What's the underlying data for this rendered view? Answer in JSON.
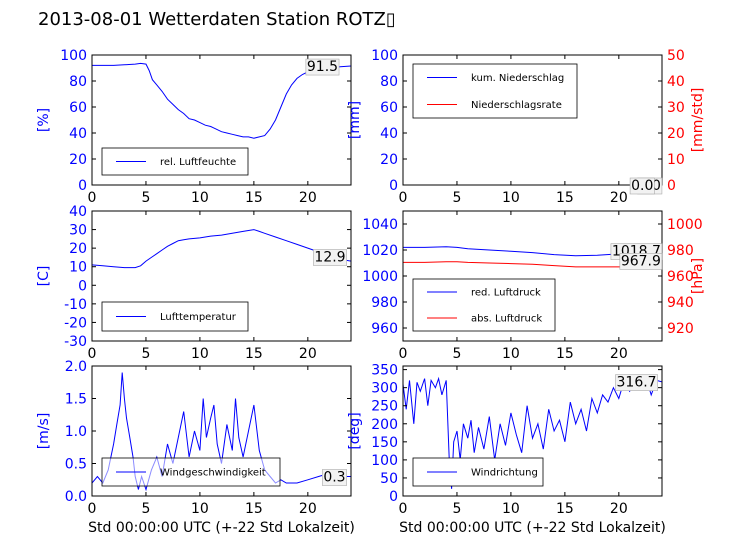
{
  "title": "2013-08-01 Wetterdaten Station ROTZ▯",
  "colors": {
    "blue": "#0000ff",
    "red": "#ff0000",
    "axis": "#000000"
  },
  "chart_data": [
    {
      "type": "line",
      "id": "humidity",
      "ylabel": "[%]",
      "ylabel_color": "#0000ff",
      "xlim": [
        0,
        24
      ],
      "ylim": [
        0,
        100
      ],
      "xticks": [
        0,
        5,
        10,
        15,
        20
      ],
      "yticks": [
        0,
        20,
        40,
        60,
        80,
        100
      ],
      "legend_placement": "lower-left",
      "annotations": [
        {
          "text": "91.5",
          "x": 22.8,
          "y": 91.5
        }
      ],
      "series": [
        {
          "name": "rel. Luftfeuchte",
          "color": "#0000ff",
          "x": [
            0,
            1,
            2,
            3,
            4,
            4.5,
            5,
            5.3,
            5.6,
            6,
            6.5,
            7,
            7.5,
            8,
            8.5,
            9,
            9.5,
            10,
            10.5,
            11,
            11.5,
            12,
            12.5,
            13,
            13.5,
            14,
            14.5,
            15,
            15.5,
            16,
            16.5,
            17,
            17.5,
            18,
            18.5,
            19,
            19.5,
            20,
            21,
            22,
            23,
            24
          ],
          "y": [
            92,
            92,
            92,
            92.5,
            93,
            93.5,
            93,
            88,
            81,
            77,
            72,
            66,
            62,
            58,
            55,
            51,
            50,
            48,
            46,
            45,
            43,
            41,
            40,
            39,
            38,
            37,
            37,
            36,
            37,
            38,
            43,
            50,
            60,
            70,
            77,
            82,
            85,
            87,
            89,
            90,
            91,
            91.5
          ]
        }
      ]
    },
    {
      "type": "line",
      "id": "precipitation",
      "ylabel": "[mm]",
      "ylabel_color": "#0000ff",
      "ylabel_right": "[mm/std]",
      "ylabel_right_color": "#ff0000",
      "xlim": [
        0,
        24
      ],
      "ylim": [
        0,
        100
      ],
      "ylim_right": [
        0,
        50
      ],
      "xticks": [
        0,
        5,
        10,
        15,
        20
      ],
      "yticks": [
        0,
        20,
        40,
        60,
        80,
        100
      ],
      "yticks_right": [
        0,
        10,
        20,
        30,
        40,
        50
      ],
      "legend_placement": "upper-left",
      "annotations": [
        {
          "text": "0.0",
          "x": 23.9,
          "y": 0
        },
        {
          "text": "0.0",
          "x": 23.2,
          "y": 0
        }
      ],
      "series": [
        {
          "name": "kum. Niederschlag",
          "color": "#0000ff",
          "x": [
            0,
            24
          ],
          "y": [
            0,
            0
          ]
        },
        {
          "name": "Niederschlagsrate",
          "color": "#ff0000",
          "x": [
            0,
            24
          ],
          "y": [
            0,
            0
          ],
          "axis": "right"
        }
      ]
    },
    {
      "type": "line",
      "id": "temperature",
      "ylabel": "[C]",
      "ylabel_color": "#0000ff",
      "xlim": [
        0,
        24
      ],
      "ylim": [
        -30,
        40
      ],
      "xticks": [
        0,
        5,
        10,
        15,
        20
      ],
      "yticks": [
        -30,
        -20,
        -10,
        0,
        10,
        20,
        30,
        40
      ],
      "legend_placement": "lower-left",
      "annotations": [
        {
          "text": "12.9",
          "x": 23.5,
          "y": 15.5
        }
      ],
      "series": [
        {
          "name": "Lufttemperatur",
          "color": "#0000ff",
          "x": [
            0,
            1,
            2,
            3,
            4,
            4.5,
            5,
            5.5,
            6,
            6.5,
            7,
            7.5,
            8,
            8.5,
            9,
            10,
            11,
            12,
            13,
            14,
            14.5,
            15,
            15.5,
            16,
            17,
            18,
            19,
            20,
            21,
            22,
            23,
            24
          ],
          "y": [
            11,
            10.5,
            10,
            9.5,
            9.5,
            10.5,
            13,
            15,
            17,
            19,
            21,
            22.5,
            24,
            24.5,
            25,
            25.5,
            26.5,
            27,
            28,
            29,
            29.5,
            30,
            29,
            28,
            26,
            24,
            22,
            20,
            18,
            16,
            14,
            13
          ]
        }
      ]
    },
    {
      "type": "line",
      "id": "pressure",
      "ylabel_right": "[hPa]",
      "ylabel_right_color": "#ff0000",
      "xlim": [
        0,
        24
      ],
      "ylim": [
        950,
        1050
      ],
      "ylim_right": [
        910,
        1010
      ],
      "xticks": [
        0,
        5,
        10,
        15,
        20
      ],
      "yticks": [
        960,
        980,
        1000,
        1020,
        1040
      ],
      "yticks_right": [
        920,
        940,
        960,
        980,
        1000
      ],
      "legend_placement": "lower-left",
      "annotations": [
        {
          "text": "1018.7",
          "x": 23.9,
          "y": 1019.5
        },
        {
          "text": "967.9",
          "x": 23.9,
          "y": 1012
        }
      ],
      "series": [
        {
          "name": "red. Luftdruck",
          "color": "#0000ff",
          "x": [
            0,
            2,
            4,
            5,
            6,
            8,
            10,
            12,
            14,
            16,
            18,
            20,
            22,
            24
          ],
          "y": [
            1022,
            1022,
            1022.5,
            1022,
            1021,
            1020,
            1019,
            1018,
            1016.5,
            1015.5,
            1016,
            1017,
            1018,
            1018.7
          ]
        },
        {
          "name": "abs. Luftdruck",
          "color": "#ff0000",
          "axis": "right",
          "x": [
            0,
            2,
            4,
            5,
            6,
            8,
            10,
            12,
            14,
            16,
            18,
            20,
            22,
            24
          ],
          "y": [
            970.5,
            970.5,
            971,
            971,
            970.5,
            970,
            969.5,
            969,
            968,
            967,
            967,
            967,
            967.5,
            967.9
          ]
        }
      ]
    },
    {
      "type": "line",
      "id": "wind-speed",
      "ylabel": "[m/s]",
      "ylabel_color": "#0000ff",
      "xlabel": "Std 00:00:00 UTC (+-22 Std Lokalzeit)",
      "xlim": [
        0,
        24
      ],
      "ylim": [
        0,
        2.0
      ],
      "xticks": [
        0,
        5,
        10,
        15,
        20
      ],
      "yticks": [
        0.0,
        0.5,
        1.0,
        1.5,
        2.0
      ],
      "legend_placement": "lower-left",
      "annotations": [
        {
          "text": "0.3",
          "x": 23.5,
          "y": 0.3
        }
      ],
      "series": [
        {
          "name": "Windgeschwindigkeit",
          "color": "#0000ff",
          "x": [
            0,
            0.5,
            1,
            1.5,
            2,
            2.3,
            2.6,
            2.8,
            3,
            3.2,
            3.5,
            3.8,
            4,
            4.3,
            4.6,
            5,
            5.5,
            6,
            6.5,
            7,
            7.5,
            8,
            8.5,
            9,
            9.5,
            10,
            10.3,
            10.6,
            11,
            11.3,
            11.6,
            12,
            12.5,
            13,
            13.3,
            13.6,
            14,
            14.5,
            15,
            15.5,
            16,
            16.5,
            17,
            17.5,
            18,
            19,
            20,
            21,
            22,
            23,
            24
          ],
          "y": [
            0.2,
            0.3,
            0.2,
            0.4,
            0.8,
            1.1,
            1.4,
            1.9,
            1.5,
            1.2,
            0.9,
            0.6,
            0.3,
            0.1,
            0.3,
            0.1,
            0.4,
            0.6,
            0.3,
            0.8,
            0.5,
            0.9,
            1.3,
            0.6,
            1.0,
            0.7,
            1.5,
            0.9,
            1.2,
            1.4,
            0.8,
            0.5,
            1.1,
            0.7,
            1.5,
            0.9,
            0.6,
            1.0,
            1.4,
            0.7,
            0.4,
            0.3,
            0.2,
            0.25,
            0.2,
            0.2,
            0.25,
            0.3,
            0.35,
            0.3,
            0.3
          ]
        }
      ]
    },
    {
      "type": "line",
      "id": "wind-direction",
      "ylabel": "[deg]",
      "ylabel_color": "#0000ff",
      "xlabel": "Std 00:00:00 UTC (+-22 Std Lokalzeit)",
      "xlim": [
        0,
        24
      ],
      "ylim": [
        0,
        360
      ],
      "xticks": [
        0,
        5,
        10,
        15,
        20
      ],
      "yticks": [
        0,
        50,
        100,
        150,
        200,
        250,
        300,
        350
      ],
      "legend_placement": "lower-left",
      "annotations": [
        {
          "text": "316.7",
          "x": 23.5,
          "y": 316.7
        }
      ],
      "series": [
        {
          "name": "Windrichtung",
          "color": "#0000ff",
          "x": [
            0,
            0.3,
            0.6,
            1,
            1.3,
            1.6,
            2,
            2.3,
            2.6,
            3,
            3.3,
            3.6,
            4,
            4.3,
            4.5,
            4.7,
            5,
            5.3,
            5.6,
            6,
            6.3,
            6.6,
            7,
            7.5,
            8,
            8.5,
            9,
            9.5,
            10,
            10.5,
            11,
            11.5,
            12,
            12.5,
            13,
            13.5,
            14,
            14.5,
            15,
            15.5,
            16,
            16.5,
            17,
            17.5,
            18,
            18.5,
            19,
            19.5,
            20,
            20.5,
            21,
            21.5,
            22,
            22.5,
            23,
            23.5,
            24
          ],
          "y": [
            310,
            240,
            320,
            200,
            315,
            290,
            325,
            250,
            320,
            300,
            325,
            280,
            320,
            90,
            20,
            150,
            180,
            100,
            200,
            160,
            210,
            120,
            190,
            130,
            220,
            100,
            200,
            140,
            230,
            170,
            120,
            250,
            160,
            200,
            130,
            240,
            180,
            210,
            150,
            260,
            200,
            240,
            180,
            270,
            230,
            280,
            260,
            300,
            270,
            320,
            290,
            310,
            300,
            330,
            280,
            320,
            316
          ]
        }
      ]
    }
  ]
}
